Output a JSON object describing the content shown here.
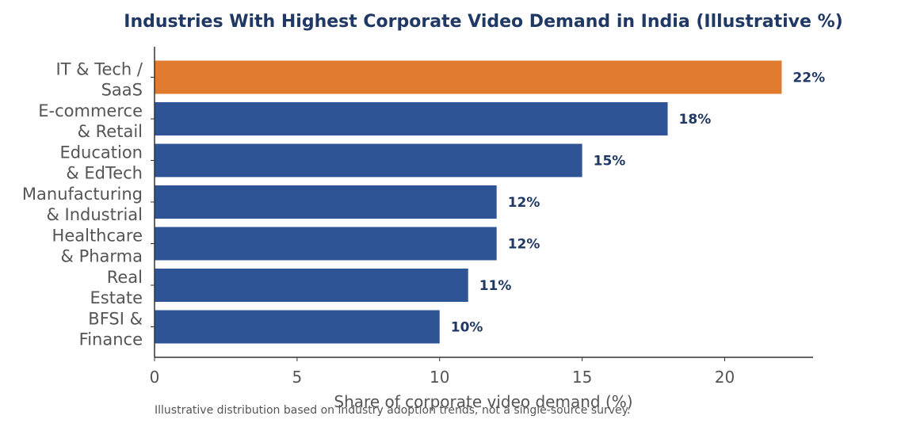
{
  "chart_data": {
    "type": "bar",
    "orientation": "horizontal",
    "title": "Industries With Highest Corporate Video Demand in India (Illustrative %)",
    "xlabel": "Share of corporate video demand (%)",
    "ylabel": "",
    "categories": [
      [
        "IT & Tech /",
        "SaaS"
      ],
      [
        "E-commerce",
        "& Retail"
      ],
      [
        "Education",
        "& EdTech"
      ],
      [
        "Manufacturing",
        "& Industrial"
      ],
      [
        "Healthcare",
        "& Pharma"
      ],
      [
        "Real",
        "Estate"
      ],
      [
        "BFSI &",
        "Finance"
      ]
    ],
    "values": [
      22,
      18,
      15,
      12,
      12,
      11,
      10
    ],
    "data_labels": [
      "22%",
      "18%",
      "15%",
      "12%",
      "12%",
      "11%",
      "10%"
    ],
    "xlim": [
      0,
      23.1
    ],
    "xticks": [
      0,
      5,
      10,
      15,
      20
    ],
    "highlight_index": 0,
    "colors": {
      "highlight": "#e07b2f",
      "bar": "#2e5495",
      "title": "#1f3864",
      "label": "#1f3864",
      "axis_text": "#555555",
      "axis_line": "#333333"
    },
    "grid": false,
    "footnote": "Illustrative distribution based on industry adoption trends, not a single-source survey."
  }
}
